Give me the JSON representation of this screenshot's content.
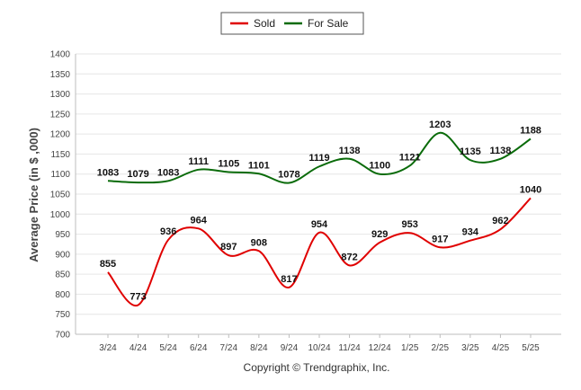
{
  "chart_data": {
    "type": "line",
    "ylabel": "Average Price (in $ ,000)",
    "xlabel": "",
    "title": "",
    "categories": [
      "3/24",
      "4/24",
      "5/24",
      "6/24",
      "7/24",
      "8/24",
      "9/24",
      "10/24",
      "11/24",
      "12/24",
      "1/25",
      "2/25",
      "3/25",
      "4/25",
      "5/25"
    ],
    "ylim": [
      700,
      1400
    ],
    "yticks": [
      700,
      750,
      800,
      850,
      900,
      950,
      1000,
      1050,
      1100,
      1150,
      1200,
      1250,
      1300,
      1350,
      1400
    ],
    "grid": true,
    "legend_position": "top-center",
    "series": [
      {
        "name": "Sold",
        "color": "#e00000",
        "values": [
          855,
          773,
          936,
          964,
          897,
          908,
          817,
          954,
          872,
          929,
          953,
          917,
          934,
          962,
          1040
        ]
      },
      {
        "name": "For Sale",
        "color": "#0a6b0a",
        "values": [
          1083,
          1079,
          1083,
          1111,
          1105,
          1101,
          1078,
          1119,
          1138,
          1100,
          1121,
          1203,
          1135,
          1138,
          1188
        ]
      }
    ]
  },
  "footer": {
    "copyright": "Copyright © Trendgraphix, Inc."
  }
}
